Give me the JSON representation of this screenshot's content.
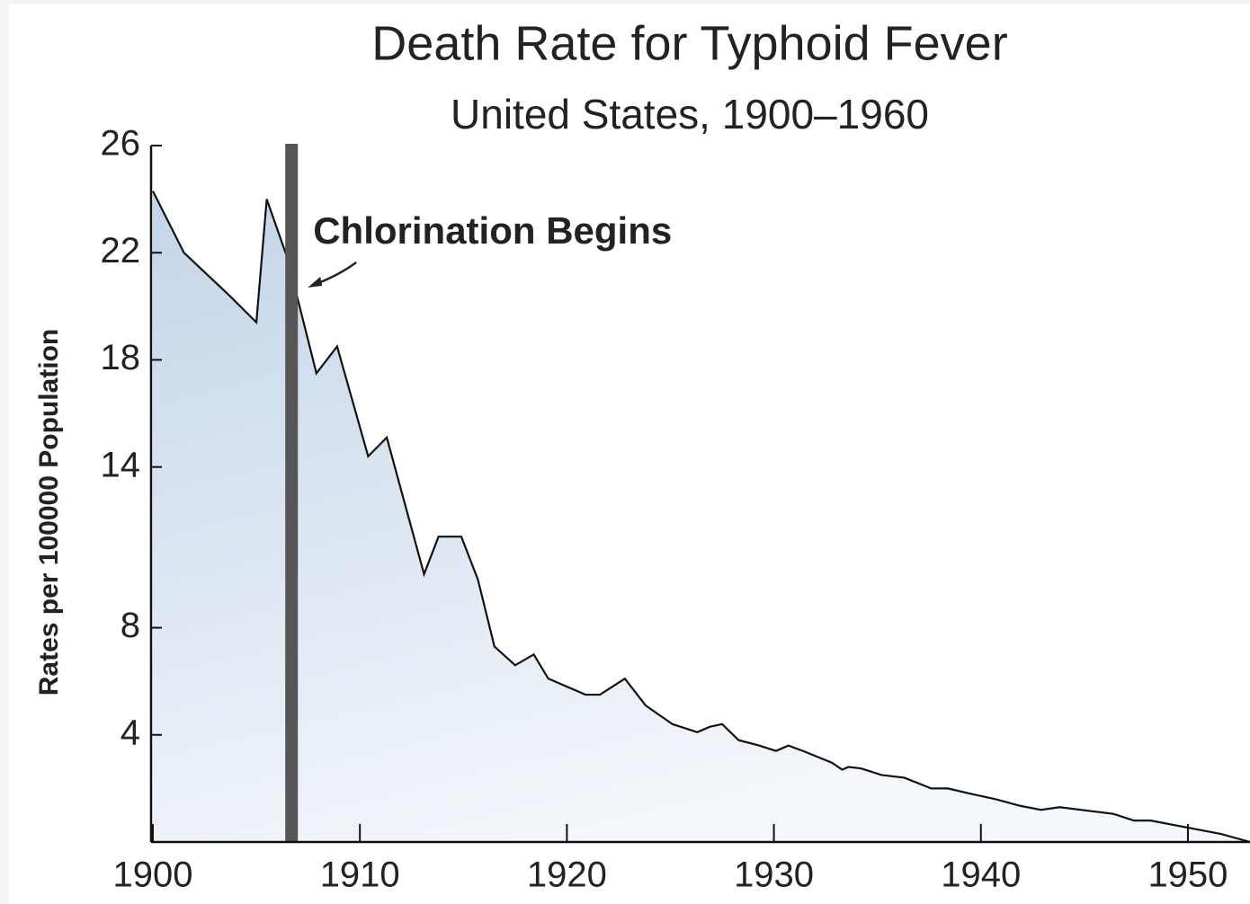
{
  "chart_data": {
    "type": "area",
    "title": "Death Rate for Typhoid Fever",
    "subtitle": "United States, 1900–1960",
    "y_label": "Rates per 100000 Population",
    "x": [
      1900,
      1901.5,
      1903.7,
      1905,
      1905.5,
      1906.5,
      1907.9,
      1908.9,
      1910.4,
      1911.3,
      1913.1,
      1913.8,
      1914.9,
      1915.7,
      1916.5,
      1917.5,
      1918.4,
      1919.1,
      1920.9,
      1921.6,
      1922.8,
      1923.8,
      1925.1,
      1926.3,
      1926.9,
      1927.5,
      1928.3,
      1929.3,
      1930.1,
      1930.7,
      1931.4,
      1932.8,
      1933.3,
      1933.6,
      1934.2,
      1935.2,
      1936.3,
      1937.6,
      1938.4,
      1939.5,
      1940.7,
      1941.9,
      1942.9,
      1943.8,
      1946.4,
      1947.4,
      1948.2,
      1951.6,
      1953
    ],
    "values": [
      24.3,
      22,
      20.4,
      19.4,
      24,
      21.8,
      17.5,
      18.5,
      14.4,
      15.1,
      10.0,
      11.4,
      11.4,
      9.8,
      7.3,
      6.6,
      7.0,
      6.1,
      5.5,
      5.5,
      6.1,
      5.1,
      4.4,
      4.1,
      4.3,
      4.4,
      3.8,
      3.6,
      3.4,
      3.6,
      3.4,
      2.96,
      2.7,
      2.8,
      2.75,
      2.5,
      2.4,
      2.0,
      2.0,
      1.8,
      1.6,
      1.35,
      1.2,
      1.3,
      1.05,
      0.8,
      0.8,
      0.3,
      0
    ],
    "color": "#c3d5e8",
    "line_color": "#111111",
    "xlim": [
      1900,
      1953
    ],
    "xticks": [
      1900,
      1910,
      1920,
      1930,
      1940,
      1950
    ],
    "ylim": [
      0,
      26
    ],
    "yticks": [
      26,
      22,
      18,
      14,
      8,
      4
    ],
    "annotation": {
      "text": "Chlorination Begins",
      "x": 1906.7,
      "color": "#555555"
    }
  }
}
